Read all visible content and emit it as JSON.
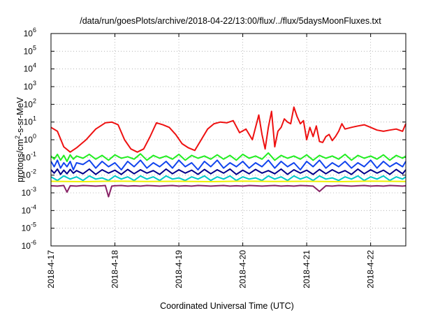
{
  "chart_data": {
    "type": "line",
    "title": "/data/run/goesPlots/archive/2018-04-22/13:00/flux/../flux/5daysMoonFluxes.txt",
    "xlabel": "Coordinated Universal Time (UTC)",
    "ylabel": {
      "prefix": "protons/cm",
      "sup": "2",
      "suffix": "-s-sr-MeV"
    },
    "yscale": "log",
    "ylim_exp": [
      -6,
      6
    ],
    "xlim_days": [
      0,
      5.55
    ],
    "xticks": [
      "2018-4-17",
      "2018-4-18",
      "2018-4-19",
      "2018-4-20",
      "2018-4-21",
      "2018-4-22"
    ],
    "yticks": [
      {
        "base": "10",
        "exp": "-6"
      },
      {
        "base": "10",
        "exp": "-5"
      },
      {
        "base": "10",
        "exp": "-4"
      },
      {
        "base": "10",
        "exp": "-3"
      },
      {
        "base": "10",
        "exp": "-2"
      },
      {
        "base": "10",
        "exp": "-1"
      },
      {
        "base": "10",
        "exp": "0"
      },
      {
        "base": "10",
        "exp": "1"
      },
      {
        "base": "10",
        "exp": "2"
      },
      {
        "base": "10",
        "exp": "3"
      },
      {
        "base": "10",
        "exp": "4"
      },
      {
        "base": "10",
        "exp": "5"
      },
      {
        "base": "10",
        "exp": "6"
      }
    ],
    "grid": true,
    "series": [
      {
        "color": "#ee1111",
        "days": [
          0.0,
          0.1,
          0.2,
          0.3,
          0.4,
          0.55,
          0.7,
          0.85,
          0.95,
          1.05,
          1.15,
          1.25,
          1.35,
          1.45,
          1.55,
          1.65,
          1.75,
          1.85,
          1.95,
          2.05,
          2.15,
          2.25,
          2.35,
          2.45,
          2.55,
          2.65,
          2.75,
          2.85,
          2.95,
          3.05,
          3.15,
          3.25,
          3.3,
          3.35,
          3.4,
          3.45,
          3.5,
          3.55,
          3.6,
          3.65,
          3.7,
          3.75,
          3.8,
          3.85,
          3.9,
          3.95,
          4.0,
          4.05,
          4.1,
          4.15,
          4.2,
          4.25,
          4.3,
          4.35,
          4.4,
          4.45,
          4.5,
          4.55,
          4.6,
          4.7,
          4.8,
          4.9,
          5.0,
          5.1,
          5.2,
          5.3,
          5.4,
          5.5,
          5.55
        ],
        "values": [
          5.0,
          3.0,
          0.4,
          0.2,
          0.35,
          1.0,
          4.0,
          9.0,
          10.0,
          7.0,
          1.0,
          0.3,
          0.2,
          0.3,
          1.5,
          9.0,
          7.0,
          5.0,
          2.0,
          0.6,
          0.35,
          0.25,
          1.0,
          4.0,
          8.0,
          10.0,
          9.0,
          12.0,
          2.5,
          4.0,
          1.0,
          25.0,
          2.0,
          0.3,
          5.0,
          40.0,
          0.4,
          3.0,
          5.0,
          15.0,
          10.0,
          8.0,
          70.0,
          20.0,
          8.0,
          12.0,
          1.0,
          5.0,
          1.5,
          6.0,
          0.8,
          0.7,
          1.5,
          2.0,
          0.9,
          1.5,
          3.0,
          8.0,
          4.0,
          5.0,
          6.0,
          7.0,
          5.0,
          3.5,
          3.0,
          3.5,
          4.0,
          3.0,
          8.0
        ]
      },
      {
        "color": "#22ee22",
        "days": [
          0.0,
          0.05,
          0.1,
          0.15,
          0.2,
          0.25,
          0.3,
          0.35,
          0.4,
          0.5,
          0.6,
          0.7,
          0.8,
          0.9,
          1.0,
          1.1,
          1.2,
          1.3,
          1.4,
          1.5,
          1.6,
          1.7,
          1.8,
          1.9,
          2.0,
          2.1,
          2.2,
          2.3,
          2.4,
          2.5,
          2.6,
          2.7,
          2.8,
          2.9,
          3.0,
          3.1,
          3.2,
          3.3,
          3.4,
          3.5,
          3.6,
          3.7,
          3.8,
          3.9,
          4.0,
          4.1,
          4.2,
          4.3,
          4.4,
          4.5,
          4.6,
          4.7,
          4.8,
          4.9,
          5.0,
          5.1,
          5.2,
          5.3,
          5.4,
          5.5,
          5.55
        ],
        "values": [
          0.12,
          0.08,
          0.15,
          0.07,
          0.13,
          0.06,
          0.14,
          0.08,
          0.12,
          0.09,
          0.15,
          0.08,
          0.13,
          0.07,
          0.14,
          0.09,
          0.11,
          0.08,
          0.16,
          0.07,
          0.13,
          0.09,
          0.12,
          0.08,
          0.15,
          0.07,
          0.13,
          0.09,
          0.12,
          0.08,
          0.14,
          0.08,
          0.13,
          0.07,
          0.15,
          0.09,
          0.12,
          0.08,
          0.18,
          0.07,
          0.13,
          0.09,
          0.12,
          0.08,
          0.14,
          0.07,
          0.13,
          0.09,
          0.12,
          0.08,
          0.15,
          0.07,
          0.13,
          0.09,
          0.12,
          0.08,
          0.14,
          0.07,
          0.13,
          0.09,
          0.12
        ]
      },
      {
        "color": "#1144ee",
        "days": [
          0.0,
          0.05,
          0.1,
          0.15,
          0.2,
          0.25,
          0.3,
          0.35,
          0.4,
          0.5,
          0.6,
          0.7,
          0.8,
          0.9,
          1.0,
          1.1,
          1.2,
          1.3,
          1.4,
          1.5,
          1.6,
          1.7,
          1.8,
          1.9,
          2.0,
          2.1,
          2.2,
          2.3,
          2.4,
          2.5,
          2.6,
          2.7,
          2.8,
          2.9,
          3.0,
          3.1,
          3.2,
          3.3,
          3.4,
          3.5,
          3.6,
          3.7,
          3.8,
          3.9,
          4.0,
          4.1,
          4.2,
          4.3,
          4.4,
          4.5,
          4.6,
          4.7,
          4.8,
          4.9,
          5.0,
          5.1,
          5.2,
          5.3,
          5.4,
          5.5,
          5.55
        ],
        "values": [
          0.06,
          0.03,
          0.07,
          0.025,
          0.05,
          0.03,
          0.06,
          0.02,
          0.05,
          0.04,
          0.07,
          0.025,
          0.06,
          0.03,
          0.05,
          0.02,
          0.06,
          0.03,
          0.07,
          0.025,
          0.05,
          0.03,
          0.06,
          0.025,
          0.07,
          0.03,
          0.05,
          0.02,
          0.06,
          0.03,
          0.07,
          0.025,
          0.05,
          0.03,
          0.06,
          0.025,
          0.05,
          0.03,
          0.07,
          0.025,
          0.06,
          0.03,
          0.05,
          0.02,
          0.06,
          0.03,
          0.07,
          0.025,
          0.05,
          0.03,
          0.06,
          0.025,
          0.05,
          0.03,
          0.07,
          0.025,
          0.06,
          0.03,
          0.05,
          0.03,
          0.06
        ]
      },
      {
        "color": "#00008b",
        "days": [
          0.0,
          0.05,
          0.1,
          0.15,
          0.2,
          0.25,
          0.3,
          0.35,
          0.4,
          0.5,
          0.6,
          0.7,
          0.8,
          0.9,
          1.0,
          1.1,
          1.2,
          1.3,
          1.4,
          1.5,
          1.6,
          1.7,
          1.8,
          1.9,
          2.0,
          2.1,
          2.2,
          2.3,
          2.4,
          2.5,
          2.6,
          2.7,
          2.8,
          2.9,
          3.0,
          3.1,
          3.2,
          3.3,
          3.4,
          3.5,
          3.6,
          3.7,
          3.8,
          3.9,
          4.0,
          4.1,
          4.2,
          4.3,
          4.4,
          4.5,
          4.6,
          4.7,
          4.8,
          4.9,
          5.0,
          5.1,
          5.2,
          5.3,
          5.4,
          5.5,
          5.55
        ],
        "values": [
          0.02,
          0.013,
          0.022,
          0.011,
          0.019,
          0.012,
          0.021,
          0.013,
          0.018,
          0.012,
          0.022,
          0.011,
          0.02,
          0.013,
          0.019,
          0.011,
          0.021,
          0.012,
          0.02,
          0.013,
          0.018,
          0.011,
          0.022,
          0.012,
          0.02,
          0.013,
          0.019,
          0.011,
          0.021,
          0.012,
          0.02,
          0.013,
          0.022,
          0.011,
          0.019,
          0.012,
          0.021,
          0.013,
          0.018,
          0.012,
          0.022,
          0.011,
          0.02,
          0.013,
          0.019,
          0.011,
          0.021,
          0.012,
          0.02,
          0.013,
          0.018,
          0.011,
          0.022,
          0.012,
          0.02,
          0.013,
          0.019,
          0.011,
          0.021,
          0.012,
          0.02
        ]
      },
      {
        "color": "#00c8c8",
        "days": [
          0.0,
          0.1,
          0.2,
          0.3,
          0.4,
          0.5,
          0.6,
          0.7,
          0.8,
          0.9,
          1.0,
          1.1,
          1.2,
          1.3,
          1.4,
          1.5,
          1.6,
          1.7,
          1.8,
          1.9,
          2.0,
          2.1,
          2.2,
          2.3,
          2.4,
          2.5,
          2.6,
          2.7,
          2.8,
          2.9,
          3.0,
          3.1,
          3.2,
          3.3,
          3.4,
          3.5,
          3.6,
          3.7,
          3.8,
          3.9,
          4.0,
          4.1,
          4.2,
          4.3,
          4.4,
          4.5,
          4.6,
          4.7,
          4.8,
          4.9,
          5.0,
          5.1,
          5.2,
          5.3,
          5.4,
          5.5,
          5.55
        ],
        "values": [
          0.008,
          0.005,
          0.009,
          0.006,
          0.008,
          0.005,
          0.009,
          0.006,
          0.007,
          0.005,
          0.009,
          0.006,
          0.008,
          0.005,
          0.009,
          0.006,
          0.008,
          0.005,
          0.009,
          0.006,
          0.007,
          0.005,
          0.008,
          0.006,
          0.009,
          0.005,
          0.008,
          0.006,
          0.009,
          0.005,
          0.008,
          0.006,
          0.007,
          0.005,
          0.009,
          0.006,
          0.008,
          0.005,
          0.009,
          0.006,
          0.008,
          0.005,
          0.009,
          0.006,
          0.007,
          0.005,
          0.008,
          0.006,
          0.009,
          0.005,
          0.008,
          0.006,
          0.009,
          0.005,
          0.008,
          0.006,
          0.008
        ]
      },
      {
        "color": "#f0f000",
        "days": [
          0.0,
          0.5,
          1.0,
          1.5,
          2.0,
          2.5,
          3.0,
          3.5,
          4.0,
          4.5,
          5.0,
          5.55
        ],
        "values": [
          0.0045,
          0.0043,
          0.0046,
          0.0044,
          0.0045,
          0.0043,
          0.0046,
          0.0044,
          0.0045,
          0.0043,
          0.0046,
          0.0044
        ]
      },
      {
        "color": "#882266",
        "days": [
          0.0,
          0.1,
          0.2,
          0.25,
          0.3,
          0.4,
          0.5,
          0.6,
          0.7,
          0.8,
          0.85,
          0.9,
          0.95,
          1.0,
          1.1,
          1.2,
          1.3,
          1.4,
          1.5,
          1.6,
          1.7,
          1.8,
          1.9,
          2.0,
          2.1,
          2.2,
          2.3,
          2.4,
          2.5,
          2.6,
          2.7,
          2.8,
          2.9,
          3.0,
          3.1,
          3.2,
          3.3,
          3.4,
          3.5,
          3.6,
          3.7,
          3.8,
          3.9,
          4.0,
          4.1,
          4.2,
          4.3,
          4.4,
          4.5,
          4.6,
          4.7,
          4.8,
          4.9,
          5.0,
          5.1,
          5.2,
          5.3,
          5.4,
          5.5,
          5.55
        ],
        "values": [
          0.0025,
          0.0024,
          0.0026,
          0.0011,
          0.0025,
          0.0024,
          0.0026,
          0.0025,
          0.0024,
          0.0025,
          0.0026,
          0.0006,
          0.0024,
          0.0025,
          0.0026,
          0.0024,
          0.0025,
          0.0024,
          0.0026,
          0.0025,
          0.0024,
          0.0025,
          0.0026,
          0.0024,
          0.0025,
          0.0024,
          0.0026,
          0.0025,
          0.0024,
          0.0025,
          0.0026,
          0.0024,
          0.0025,
          0.0024,
          0.0026,
          0.0025,
          0.0024,
          0.0025,
          0.0026,
          0.0024,
          0.0025,
          0.0024,
          0.0026,
          0.0025,
          0.0024,
          0.0012,
          0.0025,
          0.0024,
          0.0026,
          0.0025,
          0.0024,
          0.0025,
          0.0026,
          0.0024,
          0.0025,
          0.0024,
          0.0026,
          0.0025,
          0.0024,
          0.0025
        ]
      }
    ]
  }
}
